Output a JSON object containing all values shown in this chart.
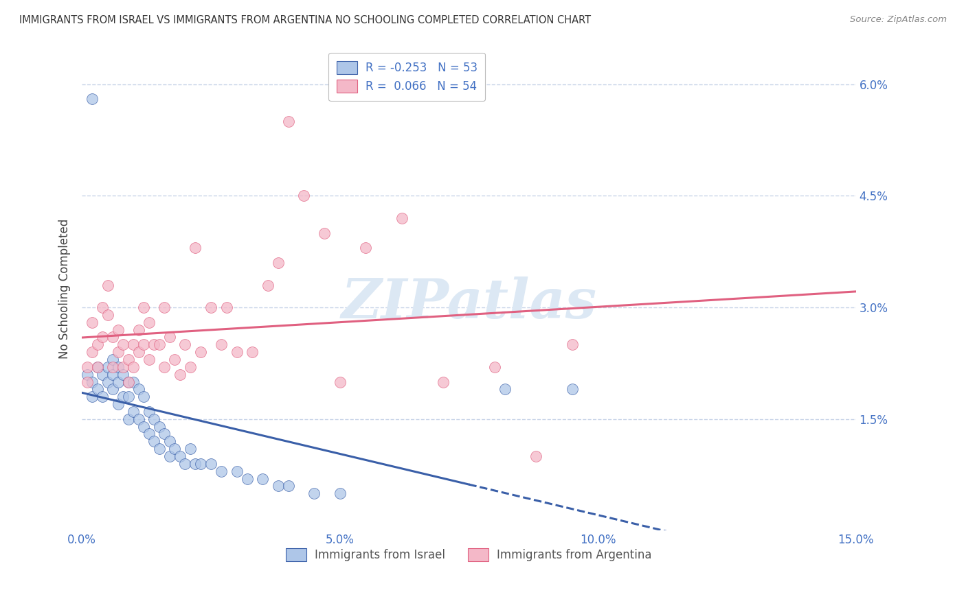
{
  "title": "IMMIGRANTS FROM ISRAEL VS IMMIGRANTS FROM ARGENTINA NO SCHOOLING COMPLETED CORRELATION CHART",
  "source": "Source: ZipAtlas.com",
  "ylabel": "No Schooling Completed",
  "xlim": [
    0.0,
    0.15
  ],
  "ylim": [
    0.0,
    0.065
  ],
  "yticks": [
    0.0,
    0.015,
    0.03,
    0.045,
    0.06
  ],
  "ytick_labels": [
    "",
    "1.5%",
    "3.0%",
    "4.5%",
    "6.0%"
  ],
  "xticks": [
    0.0,
    0.05,
    0.1,
    0.15
  ],
  "xtick_labels": [
    "0.0%",
    "5.0%",
    "10.0%",
    "15.0%"
  ],
  "legend_r_israel": "-0.253",
  "legend_n_israel": "53",
  "legend_r_argentina": "0.066",
  "legend_n_argentina": "54",
  "color_israel": "#aec6e8",
  "color_argentina": "#f4b8c8",
  "color_trendline_israel": "#3a5fa8",
  "color_trendline_argentina": "#e06080",
  "axis_color": "#4472c4",
  "grid_color": "#c8d4e8",
  "background_color": "#ffffff",
  "watermark_color": "#dce8f4",
  "israel_x": [
    0.001,
    0.002,
    0.002,
    0.003,
    0.003,
    0.004,
    0.004,
    0.005,
    0.005,
    0.006,
    0.006,
    0.006,
    0.007,
    0.007,
    0.007,
    0.008,
    0.008,
    0.009,
    0.009,
    0.009,
    0.01,
    0.01,
    0.011,
    0.011,
    0.012,
    0.012,
    0.013,
    0.013,
    0.014,
    0.014,
    0.015,
    0.015,
    0.016,
    0.017,
    0.017,
    0.018,
    0.019,
    0.02,
    0.021,
    0.022,
    0.023,
    0.025,
    0.027,
    0.03,
    0.032,
    0.035,
    0.038,
    0.04,
    0.045,
    0.05,
    0.002,
    0.082,
    0.095
  ],
  "israel_y": [
    0.021,
    0.02,
    0.018,
    0.022,
    0.019,
    0.021,
    0.018,
    0.022,
    0.02,
    0.023,
    0.021,
    0.019,
    0.022,
    0.02,
    0.017,
    0.021,
    0.018,
    0.02,
    0.018,
    0.015,
    0.02,
    0.016,
    0.019,
    0.015,
    0.018,
    0.014,
    0.016,
    0.013,
    0.015,
    0.012,
    0.014,
    0.011,
    0.013,
    0.012,
    0.01,
    0.011,
    0.01,
    0.009,
    0.011,
    0.009,
    0.009,
    0.009,
    0.008,
    0.008,
    0.007,
    0.007,
    0.006,
    0.006,
    0.005,
    0.005,
    0.058,
    0.019,
    0.019
  ],
  "argentina_x": [
    0.001,
    0.001,
    0.002,
    0.002,
    0.003,
    0.003,
    0.004,
    0.004,
    0.005,
    0.005,
    0.006,
    0.006,
    0.007,
    0.007,
    0.008,
    0.008,
    0.009,
    0.009,
    0.01,
    0.01,
    0.011,
    0.011,
    0.012,
    0.012,
    0.013,
    0.013,
    0.014,
    0.015,
    0.016,
    0.016,
    0.017,
    0.018,
    0.019,
    0.02,
    0.021,
    0.022,
    0.023,
    0.025,
    0.027,
    0.028,
    0.03,
    0.033,
    0.036,
    0.038,
    0.04,
    0.043,
    0.047,
    0.05,
    0.055,
    0.062,
    0.07,
    0.08,
    0.088,
    0.095
  ],
  "argentina_y": [
    0.022,
    0.02,
    0.028,
    0.024,
    0.025,
    0.022,
    0.03,
    0.026,
    0.033,
    0.029,
    0.022,
    0.026,
    0.024,
    0.027,
    0.022,
    0.025,
    0.023,
    0.02,
    0.025,
    0.022,
    0.024,
    0.027,
    0.03,
    0.025,
    0.028,
    0.023,
    0.025,
    0.025,
    0.03,
    0.022,
    0.026,
    0.023,
    0.021,
    0.025,
    0.022,
    0.038,
    0.024,
    0.03,
    0.025,
    0.03,
    0.024,
    0.024,
    0.033,
    0.036,
    0.055,
    0.045,
    0.04,
    0.02,
    0.038,
    0.042,
    0.02,
    0.022,
    0.01,
    0.025
  ],
  "trendline_israel_x0": 0.0,
  "trendline_israel_x1": 0.075,
  "trendline_israel_xdash0": 0.075,
  "trendline_israel_xdash1": 0.15,
  "trendline_argentina_x0": 0.0,
  "trendline_argentina_x1": 0.15
}
